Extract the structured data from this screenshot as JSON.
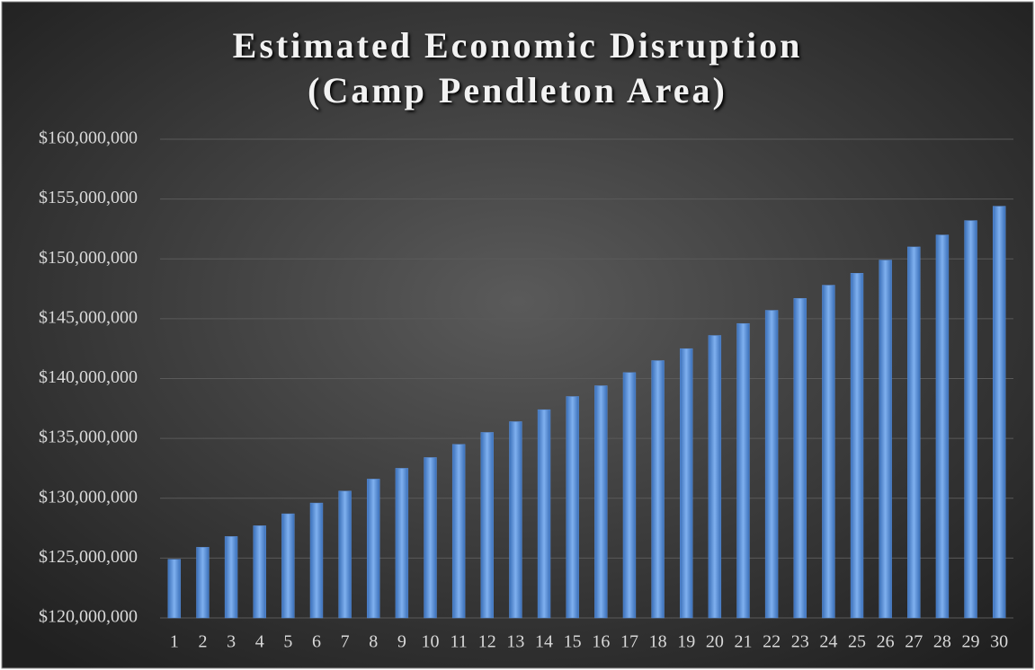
{
  "chart_data": {
    "type": "bar",
    "title": "Estimated Economic Disruption\n(Camp Pendleton Area)",
    "categories": [
      "1",
      "2",
      "3",
      "4",
      "5",
      "6",
      "7",
      "8",
      "9",
      "10",
      "11",
      "12",
      "13",
      "14",
      "15",
      "16",
      "17",
      "18",
      "19",
      "20",
      "21",
      "22",
      "23",
      "24",
      "25",
      "26",
      "27",
      "28",
      "29",
      "30"
    ],
    "values": [
      124900000,
      125900000,
      126800000,
      127700000,
      128700000,
      129600000,
      130600000,
      131600000,
      132500000,
      133400000,
      134500000,
      135500000,
      136400000,
      137400000,
      138500000,
      139400000,
      140500000,
      141500000,
      142500000,
      143600000,
      144600000,
      145700000,
      146700000,
      147800000,
      148800000,
      149900000,
      151000000,
      152000000,
      153200000,
      154400000
    ],
    "color": "#5b8ed6",
    "ylim": [
      120000000,
      160000000
    ],
    "yticks": [
      {
        "value": 120000000,
        "label": "$120,000,000"
      },
      {
        "value": 125000000,
        "label": "$125,000,000"
      },
      {
        "value": 130000000,
        "label": "$130,000,000"
      },
      {
        "value": 135000000,
        "label": "$135,000,000"
      },
      {
        "value": 140000000,
        "label": "$140,000,000"
      },
      {
        "value": 145000000,
        "label": "$145,000,000"
      },
      {
        "value": 150000000,
        "label": "$150,000,000"
      },
      {
        "value": 155000000,
        "label": "$155,000,000"
      },
      {
        "value": 160000000,
        "label": "$160,000,000"
      }
    ],
    "grid": true
  }
}
